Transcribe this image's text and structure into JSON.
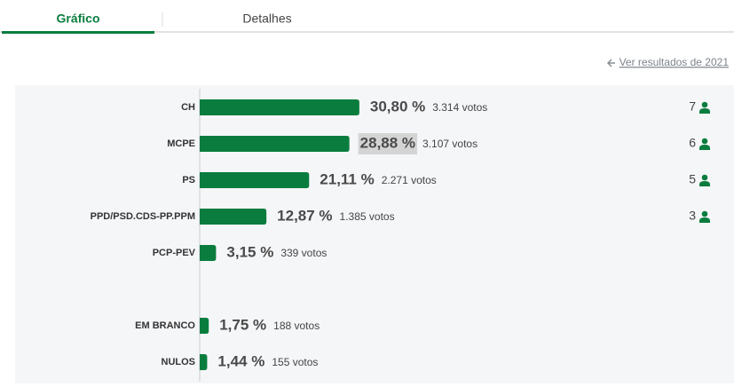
{
  "tabs": [
    "Gráfico",
    "Detalhes"
  ],
  "link": "Ver resultados de 2021",
  "chart_data": {
    "type": "bar",
    "categories": [
      "CH",
      "MCPE",
      "PS",
      "PPD/PSD.CDS-PP.PPM",
      "PCP-PEV",
      null,
      "EM BRANCO",
      "NULOS"
    ],
    "values": [
      30.8,
      28.88,
      21.11,
      12.87,
      3.15,
      null,
      1.75,
      1.44
    ],
    "value_labels": [
      "30,80 %",
      "28,88 %",
      "21,11 %",
      "12,87 %",
      "3,15 %",
      null,
      "1,75 %",
      "1,44 %"
    ],
    "votes": [
      "3.314 votos",
      "3.107 votos",
      "2.271 votos",
      "1.385 votos",
      "339 votos",
      null,
      "188 votos",
      "155 votos"
    ],
    "seats": [
      7,
      6,
      5,
      3,
      null,
      null,
      null,
      null
    ],
    "color": "#0a7d3e"
  }
}
